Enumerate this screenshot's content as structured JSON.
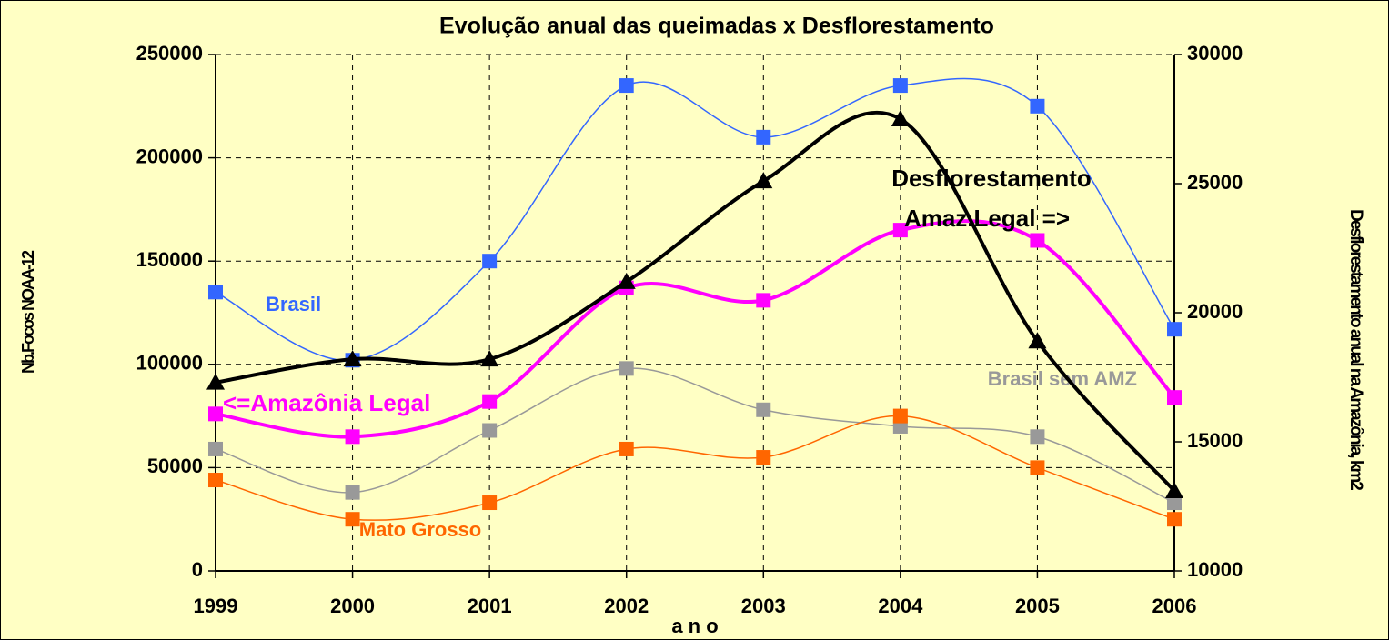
{
  "chart_data": {
    "type": "line",
    "title": "Evolução anual das queimadas x Desflorestamento",
    "x_label": "a n o",
    "y_label": "Nb.Focos NOAA-12",
    "y2_label": "Desflorestamento anual na Amazônia, km2",
    "categories": [
      "1999",
      "2000",
      "2001",
      "2002",
      "2003",
      "2004",
      "2005",
      "2006"
    ],
    "ylim": [
      0,
      250000
    ],
    "yticks": [
      0,
      50000,
      100000,
      150000,
      200000,
      250000
    ],
    "y2lim": [
      10000,
      30000
    ],
    "y2ticks": [
      10000,
      15000,
      20000,
      25000,
      30000
    ],
    "grid": true,
    "series": [
      {
        "name": "Brasil",
        "color": "#3366ff",
        "marker": "square",
        "values": [
          135000,
          102000,
          150000,
          235000,
          210000,
          235000,
          225000,
          117000
        ]
      },
      {
        "name": "<=Amazônia Legal",
        "color": "#ff00ff",
        "marker": "square",
        "values": [
          76000,
          65000,
          82000,
          137000,
          131000,
          165000,
          160000,
          84000
        ]
      },
      {
        "name": "Brasil sem AMZ",
        "color": "#999999",
        "marker": "square",
        "values": [
          59000,
          38000,
          68000,
          98000,
          78000,
          70000,
          65000,
          33000
        ]
      },
      {
        "name": "Mato Grosso",
        "color": "#ff6600",
        "marker": "square",
        "values": [
          44000,
          25000,
          33000,
          59000,
          55000,
          75000,
          50000,
          25000
        ]
      },
      {
        "name": "Desflorestamento",
        "color": "#000000",
        "marker": "triangle",
        "axis": "y2",
        "annotation": "Amaz.Legal =>",
        "values": [
          17300,
          18200,
          18200,
          21200,
          25100,
          27500,
          18900,
          13100
        ]
      }
    ]
  }
}
